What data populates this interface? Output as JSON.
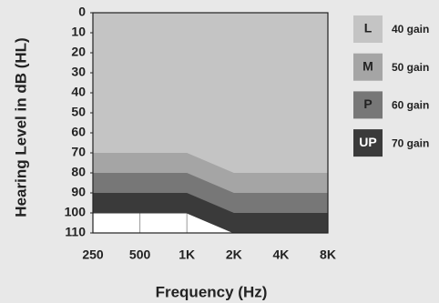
{
  "chart_data": {
    "type": "area-bands",
    "ylabel": "Hearing Level in dB (HL)",
    "xlabel": "Frequency (Hz)",
    "categories": [
      "250",
      "500",
      "1K",
      "2K",
      "4K",
      "8K"
    ],
    "ylim": [
      0,
      110
    ],
    "yticks": [
      0,
      10,
      20,
      30,
      40,
      50,
      60,
      70,
      80,
      90,
      100,
      110
    ],
    "y_inverted": true,
    "grid": true,
    "legend": "right",
    "series": [
      {
        "name": "L",
        "label": "40 gain",
        "color": "#c4c4c4",
        "values": [
          70,
          70,
          70,
          80,
          80,
          80
        ]
      },
      {
        "name": "M",
        "label": "50 gain",
        "color": "#a5a5a5",
        "values": [
          80,
          80,
          80,
          90,
          90,
          90
        ]
      },
      {
        "name": "P",
        "label": "60 gain",
        "color": "#777777",
        "values": [
          90,
          90,
          90,
          100,
          100,
          100
        ]
      },
      {
        "name": "UP",
        "label": "70 gain",
        "color": "#3a3a3a",
        "values": [
          100,
          100,
          100,
          110,
          110,
          110
        ]
      }
    ]
  }
}
